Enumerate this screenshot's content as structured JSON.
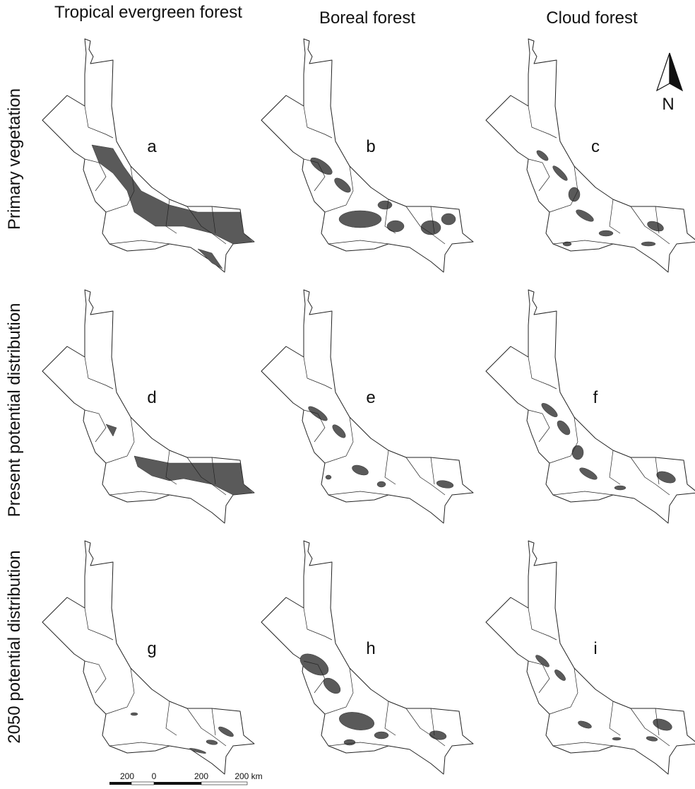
{
  "columns": [
    "Tropical evergreen forest",
    "Boreal forest",
    "Cloud forest"
  ],
  "rows": [
    "Primary vegetation",
    "Present potential distribution",
    "2050 potential distribution"
  ],
  "panels": [
    "a",
    "b",
    "c",
    "d",
    "e",
    "f",
    "g",
    "h",
    "i"
  ],
  "north": "N",
  "scale": {
    "labels": [
      "200",
      "0",
      "200",
      "200 km"
    ]
  }
}
